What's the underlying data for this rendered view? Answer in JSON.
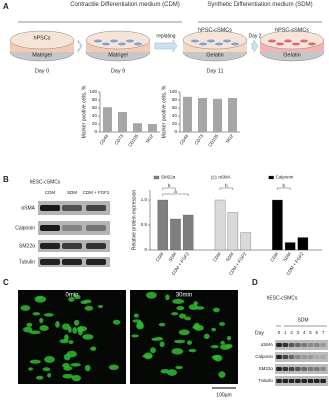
{
  "panel_a": {
    "label": "A",
    "cdm_header": "Contractile Differentiation medium (CDM)",
    "sdm_header": "Synthetic Differentiation medium (SDM)",
    "dishes": [
      {
        "cells": "hPSCs",
        "substrate": "Matrigel",
        "day": "Day 0"
      },
      {
        "substrate": "Matrigel",
        "day": "Day 9"
      },
      {
        "cells": "hPSC-cSMCs",
        "substrate": "Gelatin",
        "day": "Day 11"
      },
      {
        "cells": "hPSC-sSMCs",
        "substrate": "Gelatin"
      }
    ],
    "arrows": [
      "replating",
      "Day 2"
    ]
  },
  "panel_b": {
    "label": "B",
    "group": "hESC-cSMCs",
    "lanes": [
      "CDM",
      "SDM",
      "CDM + FGF2"
    ],
    "rows": [
      "αSMA",
      "Calponin",
      "SM22α",
      "Tubulin"
    ]
  },
  "panel_c": {
    "label": "C",
    "times": [
      "0min",
      "30min"
    ],
    "scale": "100μm"
  },
  "panel_d": {
    "label": "D",
    "group": "hESC-cSMCs",
    "treatment": "SDM",
    "day_label": "Day",
    "days": [
      "0",
      "1",
      "2",
      "3",
      "4",
      "5",
      "6",
      "7"
    ],
    "rows": [
      "αSMA",
      "Calponin",
      "SM22α",
      "Tubulin"
    ]
  },
  "chart_data": [
    {
      "type": "bar",
      "ylabel": "Marker positive cells, %",
      "categories": [
        "CD44",
        "CD73",
        "CD105",
        "NG2"
      ],
      "values": [
        62,
        50,
        22,
        20
      ],
      "color": "#a6a6a6",
      "ylim": [
        0,
        100
      ],
      "yticks": [
        0,
        20,
        40,
        60,
        80,
        100
      ]
    },
    {
      "type": "bar",
      "ylabel": "Marker positive cells, %",
      "categories": [
        "CD44",
        "CD73",
        "CD105",
        "NG2"
      ],
      "values": [
        88,
        85,
        83,
        85
      ],
      "color": "#a6a6a6",
      "ylim": [
        0,
        100
      ],
      "yticks": [
        0,
        20,
        40,
        60,
        80,
        100
      ]
    },
    {
      "type": "grouped-bar",
      "ylabel": "Relative protein expression",
      "categories": [
        "CDM",
        "SDM",
        "CDM + FGF2"
      ],
      "series": [
        {
          "name": "SM22α",
          "color": "#7f7f7f",
          "values": [
            1,
            0.62,
            0.7
          ]
        },
        {
          "name": "αSMA",
          "color": "#d9d9d9",
          "values": [
            1,
            0.75,
            0.35
          ]
        },
        {
          "name": "Calponin",
          "color": "#000000",
          "values": [
            1,
            0.15,
            0.25
          ]
        }
      ],
      "annotations": [
        [
          "b",
          "a"
        ],
        [
          "b"
        ],
        [
          "b"
        ]
      ],
      "ylim": [
        0,
        1.2
      ],
      "yticks": [
        0,
        0.5,
        {
          "value": 1,
          "label": "1.0"
        }
      ]
    }
  ]
}
